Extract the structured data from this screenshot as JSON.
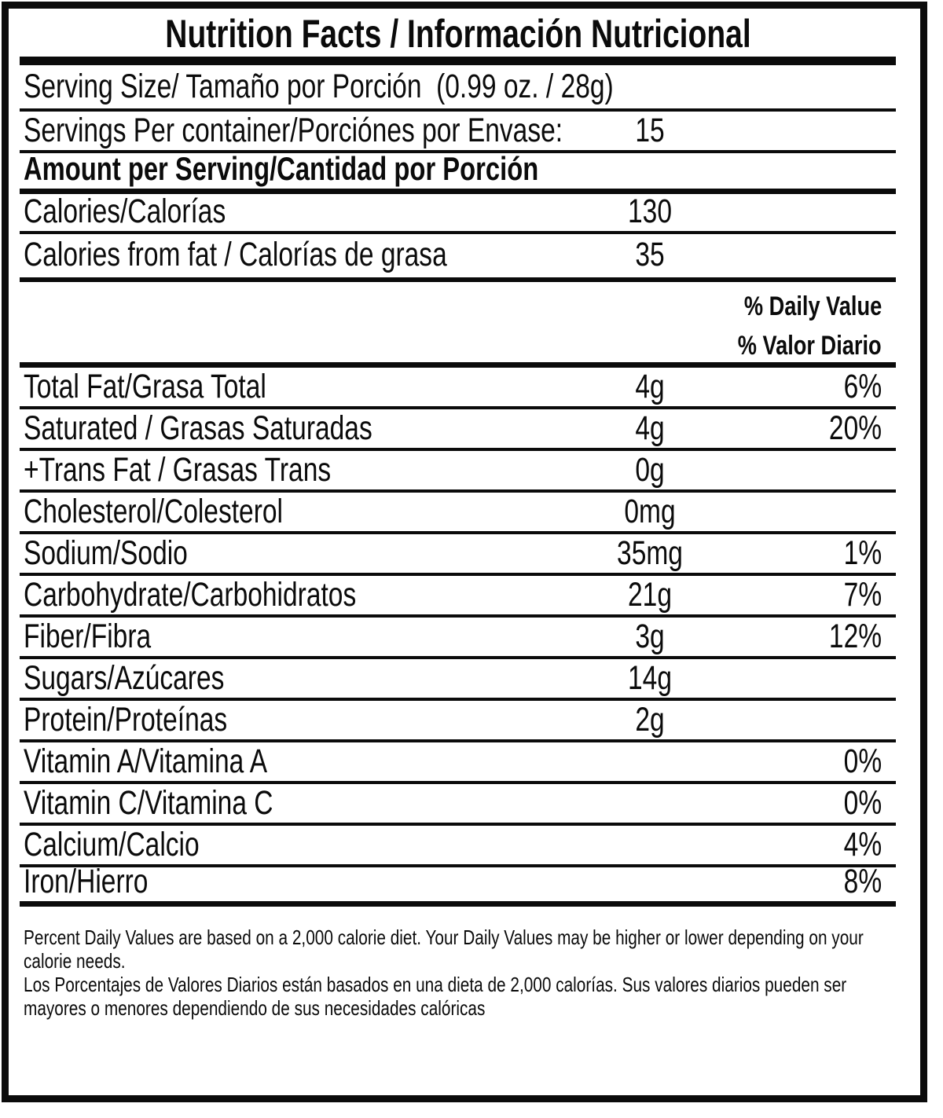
{
  "colors": {
    "ink": "#0b0b0b",
    "background": "#ffffff"
  },
  "header": {
    "title": "Nutrition Facts / Información Nutricional"
  },
  "serving_info": {
    "serving_size": "Serving Size/ Tamaño por Porción  (0.99 oz. / 28g)",
    "servings_per_container_label": "Servings Per container/Porciónes por Envase:",
    "servings_per_container_value": "15",
    "amount_per_serving": "Amount per Serving/Cantidad por Porción"
  },
  "calories": {
    "label": "Calories/Calorías",
    "value": "130"
  },
  "calories_from_fat": {
    "label": "Calories from fat / Calorías de grasa",
    "value": "35"
  },
  "daily_value_header": {
    "en": "% Daily Value",
    "es": "% Valor Diario"
  },
  "nutrients": [
    {
      "label": "Total Fat/Grasa Total",
      "amount": "4g",
      "percent": "6%"
    },
    {
      "label": "Saturated / Grasas Saturadas",
      "amount": "4g",
      "percent": "20%"
    },
    {
      "label": "+Trans Fat / Grasas Trans",
      "amount": "0g",
      "percent": ""
    },
    {
      "label": "Cholesterol/Colesterol",
      "amount": "0mg",
      "percent": ""
    },
    {
      "label": "Sodium/Sodio",
      "amount": "35mg",
      "percent": "1%"
    },
    {
      "label": "Carbohydrate/Carbohidratos",
      "amount": "21g",
      "percent": "7%"
    },
    {
      "label": "Fiber/Fibra",
      "amount": "3g",
      "percent": "12%"
    },
    {
      "label": "Sugars/Azúcares",
      "amount": "14g",
      "percent": ""
    },
    {
      "label": "Protein/Proteínas",
      "amount": "2g",
      "percent": ""
    },
    {
      "label": "Vitamin A/Vitamina A",
      "amount": "",
      "percent": "0%"
    },
    {
      "label": "Vitamin C/Vitamina C",
      "amount": "",
      "percent": "0%"
    },
    {
      "label": "Calcium/Calcio",
      "amount": "",
      "percent": "4%"
    },
    {
      "label": "Iron/Hierro",
      "amount": "",
      "percent": "8%"
    }
  ],
  "footnote": {
    "en_line1": "Percent Daily Values are based on a 2,000 calorie diet. Your Daily Values may be higher or lower depending on your",
    "en_line2": "calorie needs.",
    "es_line1": "Los Porcentajes de Valores Diarios están basados en una dieta de 2,000 calorías. Sus valores diarios pueden ser",
    "es_line2": "mayores o menores dependiendo de sus necesidades calóricas"
  }
}
